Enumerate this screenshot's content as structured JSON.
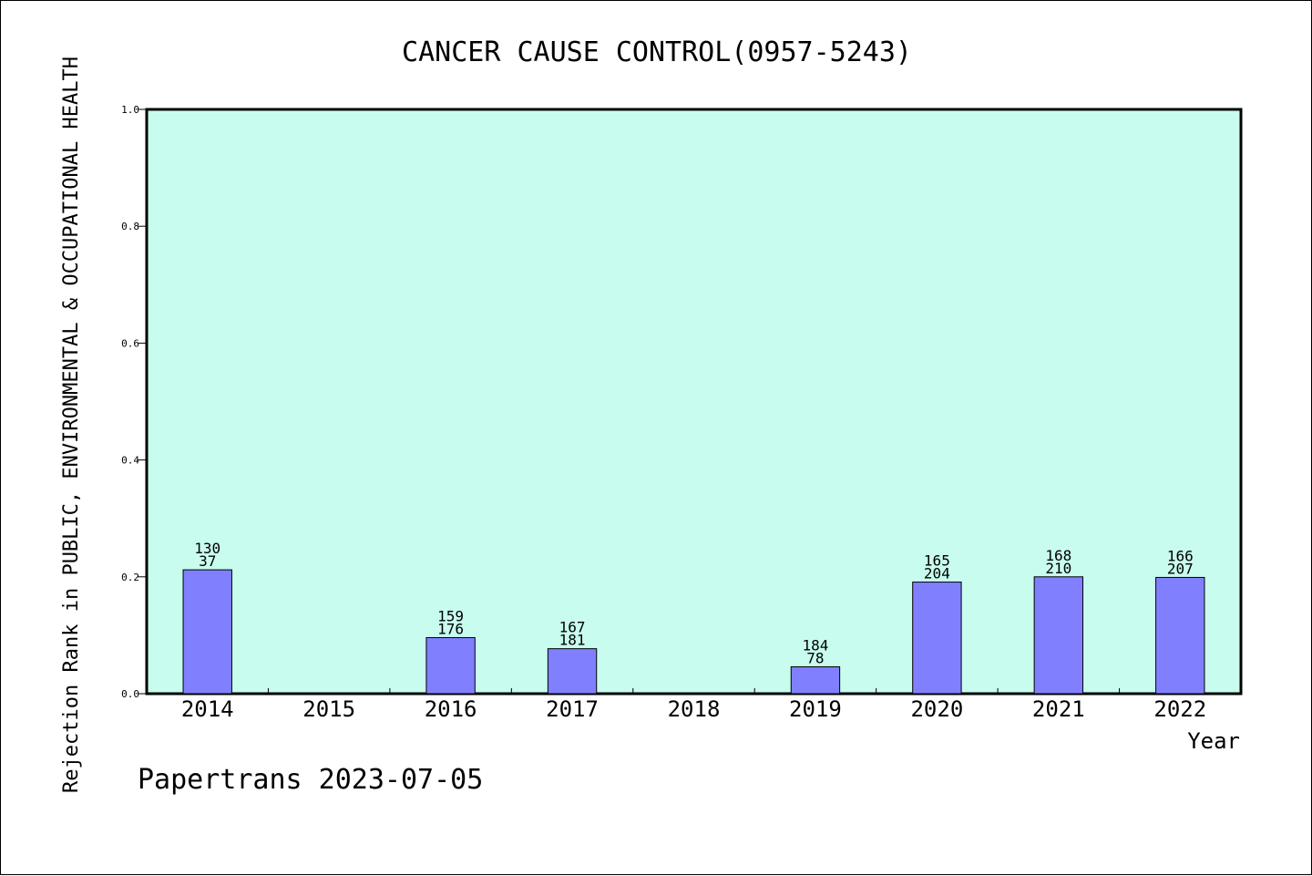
{
  "chart_data": {
    "type": "bar",
    "title": "CANCER CAUSE CONTROL(0957-5243)",
    "xlabel": "Year",
    "ylabel": "Rejection Rank in PUBLIC, ENVIRONMENTAL & OCCUPATIONAL HEALTH",
    "categories": [
      "2014",
      "2015",
      "2016",
      "2017",
      "2018",
      "2019",
      "2020",
      "2021",
      "2022"
    ],
    "values": [
      0.212,
      null,
      0.096,
      0.077,
      null,
      0.046,
      0.191,
      0.2,
      0.199
    ],
    "data_labels": [
      [
        "130",
        "37"
      ],
      null,
      [
        "159",
        "176"
      ],
      [
        "167",
        "181"
      ],
      null,
      [
        "184",
        "78"
      ],
      [
        "165",
        "204"
      ],
      [
        "168",
        "210"
      ],
      [
        "166",
        "207"
      ]
    ],
    "ylim": [
      0,
      1.0
    ],
    "yticks": [
      "0.0",
      "0.2",
      "0.4",
      "0.6",
      "0.8",
      "1.0"
    ],
    "grid": false,
    "colors": {
      "plot_background": "#c8fcee",
      "bar_fill": "#8080ff",
      "bar_stroke": "#000000"
    }
  },
  "footer": "Papertrans 2023-07-05"
}
